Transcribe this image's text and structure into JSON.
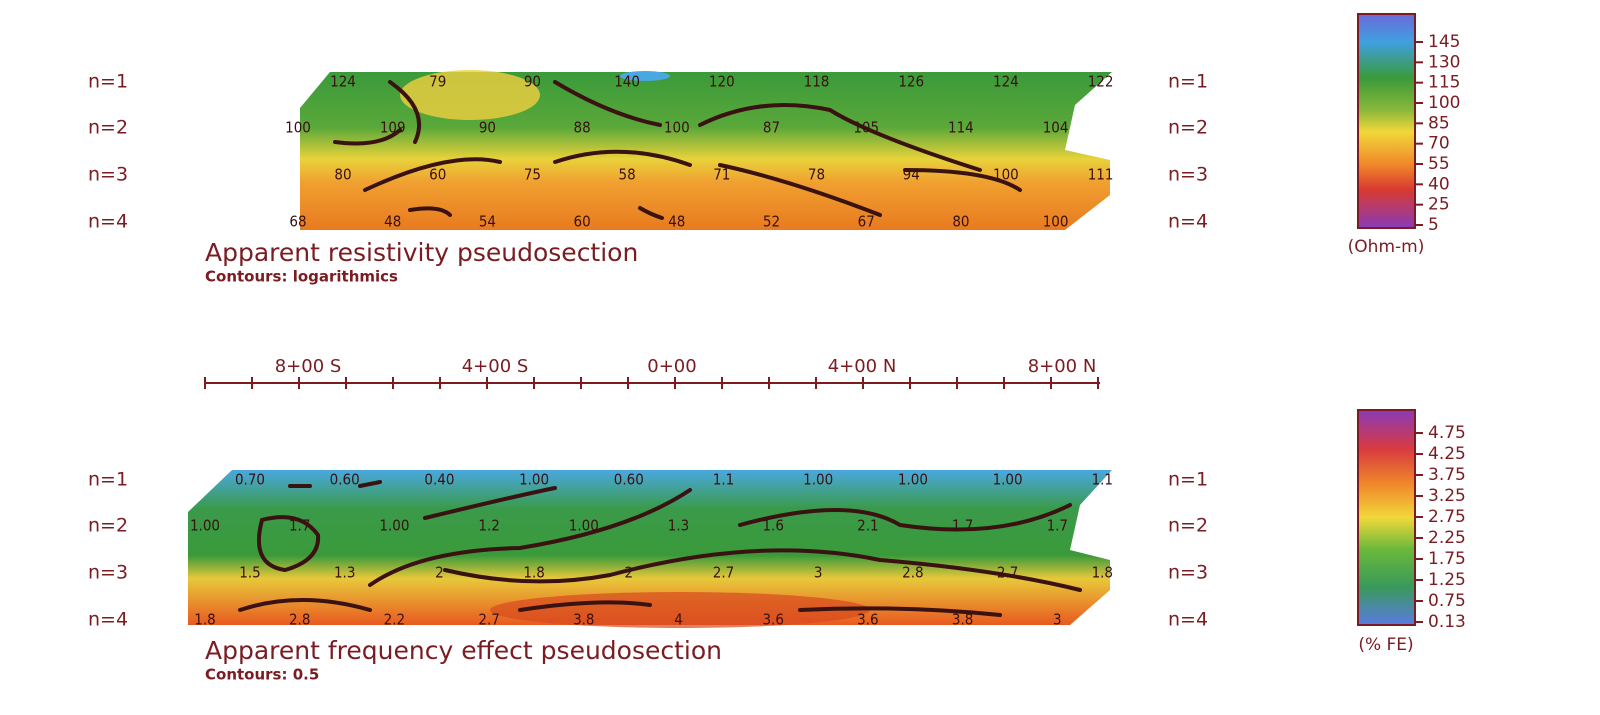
{
  "stations": [
    "8+00 S",
    "4+00 S",
    "0+00",
    "4+00 N",
    "8+00 N"
  ],
  "resistivity": {
    "title": "Apparent resistivity pseudosection",
    "subtitle": "Contours: logarithmics",
    "row_labels": [
      "n=1",
      "n=2",
      "n=3",
      "n=4"
    ],
    "rows": [
      [
        124,
        79,
        90,
        140,
        120,
        118,
        126,
        124,
        122
      ],
      [
        100,
        109,
        90,
        88,
        100,
        87,
        105,
        114,
        104
      ],
      [
        80,
        60,
        75,
        58,
        71,
        78,
        94,
        100,
        111
      ],
      [
        68,
        48,
        54,
        60,
        48,
        52,
        67,
        80,
        100
      ]
    ],
    "colorbar": {
      "unit": "(Ohm-m)",
      "ticks": [
        145,
        130,
        115,
        100,
        85,
        70,
        55,
        40,
        25,
        5
      ]
    }
  },
  "frequency": {
    "title": "Apparent frequency effect pseudosection",
    "subtitle": "Contours: 0.5",
    "row_labels": [
      "n=1",
      "n=2",
      "n=3",
      "n=4"
    ],
    "rows": [
      [
        "0.70",
        "0.60",
        "0.40",
        "1.00",
        "0.60",
        "1.1",
        "1.00",
        "1.00",
        "1.00",
        "1.1"
      ],
      [
        "1.00",
        "1.7",
        "1.00",
        "1.2",
        "1.00",
        "1.3",
        "1.6",
        "2.1",
        "1.7",
        "1.7"
      ],
      [
        "1.5",
        "1.3",
        "2",
        "1.8",
        "2",
        "2.7",
        "3",
        "2.8",
        "2.7",
        "1.8"
      ],
      [
        "1.8",
        "2.8",
        "2.2",
        "2.7",
        "3.8",
        "4",
        "3.6",
        "3.6",
        "3.8",
        "3"
      ]
    ],
    "colorbar": {
      "unit": "(% FE)",
      "ticks": [
        "4.75",
        "4.25",
        "3.75",
        "3.25",
        "2.75",
        "2.25",
        "1.75",
        "1.25",
        "0.75",
        "0.13"
      ]
    }
  }
}
